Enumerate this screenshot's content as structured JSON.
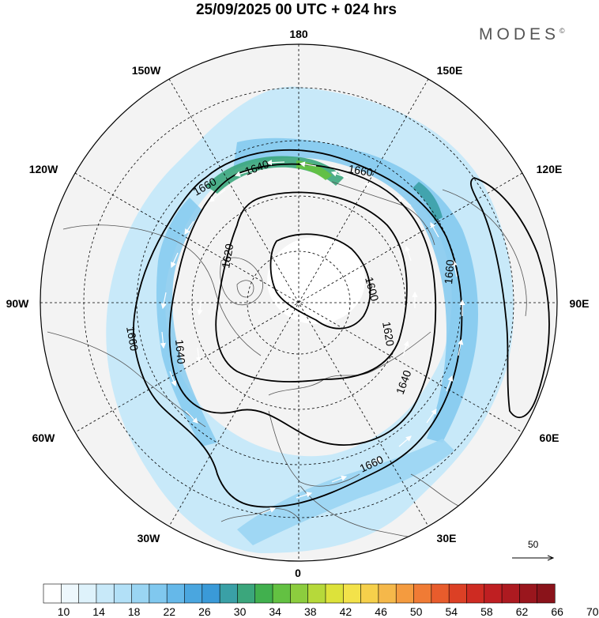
{
  "title": "25/09/2025  00 UTC  + 024 hrs",
  "logo": {
    "text": "MODES",
    "mark": "©"
  },
  "longitude_labels": {
    "top": "180",
    "bottom": "0",
    "left": "90W",
    "right": "90E",
    "upper_left_1": "150W",
    "upper_left_2": "120W",
    "lower_left_1": "60W",
    "lower_left_2": "30W",
    "upper_right_1": "150E",
    "upper_right_2": "120E",
    "lower_right_1": "60E",
    "lower_right_2": "30E"
  },
  "contour_labels": [
    "1660",
    "1640",
    "1660",
    "1620",
    "1600",
    "1620",
    "1660",
    "1660",
    "1640",
    "1620",
    "1640",
    "1660"
  ],
  "wind_scale": {
    "label": "50",
    "icon": "arrow-right-icon"
  },
  "colorbar": {
    "ticks": [
      "10",
      "14",
      "18",
      "22",
      "26",
      "30",
      "34",
      "38",
      "42",
      "46",
      "50",
      "54",
      "58",
      "62",
      "66",
      "70"
    ],
    "colors": [
      "#ffffff",
      "#eef8fd",
      "#def2fb",
      "#c8e9f9",
      "#b2e0f7",
      "#9ad5f3",
      "#80c8ef",
      "#65b8e9",
      "#4aa6df",
      "#3a9ad8",
      "#3aa0a6",
      "#3ba67c",
      "#41b04e",
      "#63c142",
      "#8ccd3e",
      "#b6d93a",
      "#dde23a",
      "#f3e24a",
      "#f6d04b",
      "#f5b84a",
      "#f49b3f",
      "#f07b35",
      "#e85c2c",
      "#dc4025",
      "#ce2b22",
      "#bf1f22",
      "#ad1a20",
      "#9a161d",
      "#8a131a"
    ]
  },
  "chart_data": {
    "type": "polar-stereographic-map",
    "title": "25/09/2025  00 UTC  + 024 hrs",
    "projection": "north-polar-stereographic",
    "variable_fill": "wind speed (colour shaded)",
    "variable_contours": "geopotential height (dam)",
    "contour_levels": [
      1600,
      1620,
      1640,
      1660
    ],
    "wind_reference_vector": 50,
    "colorbar_range": [
      10,
      70
    ]
  }
}
